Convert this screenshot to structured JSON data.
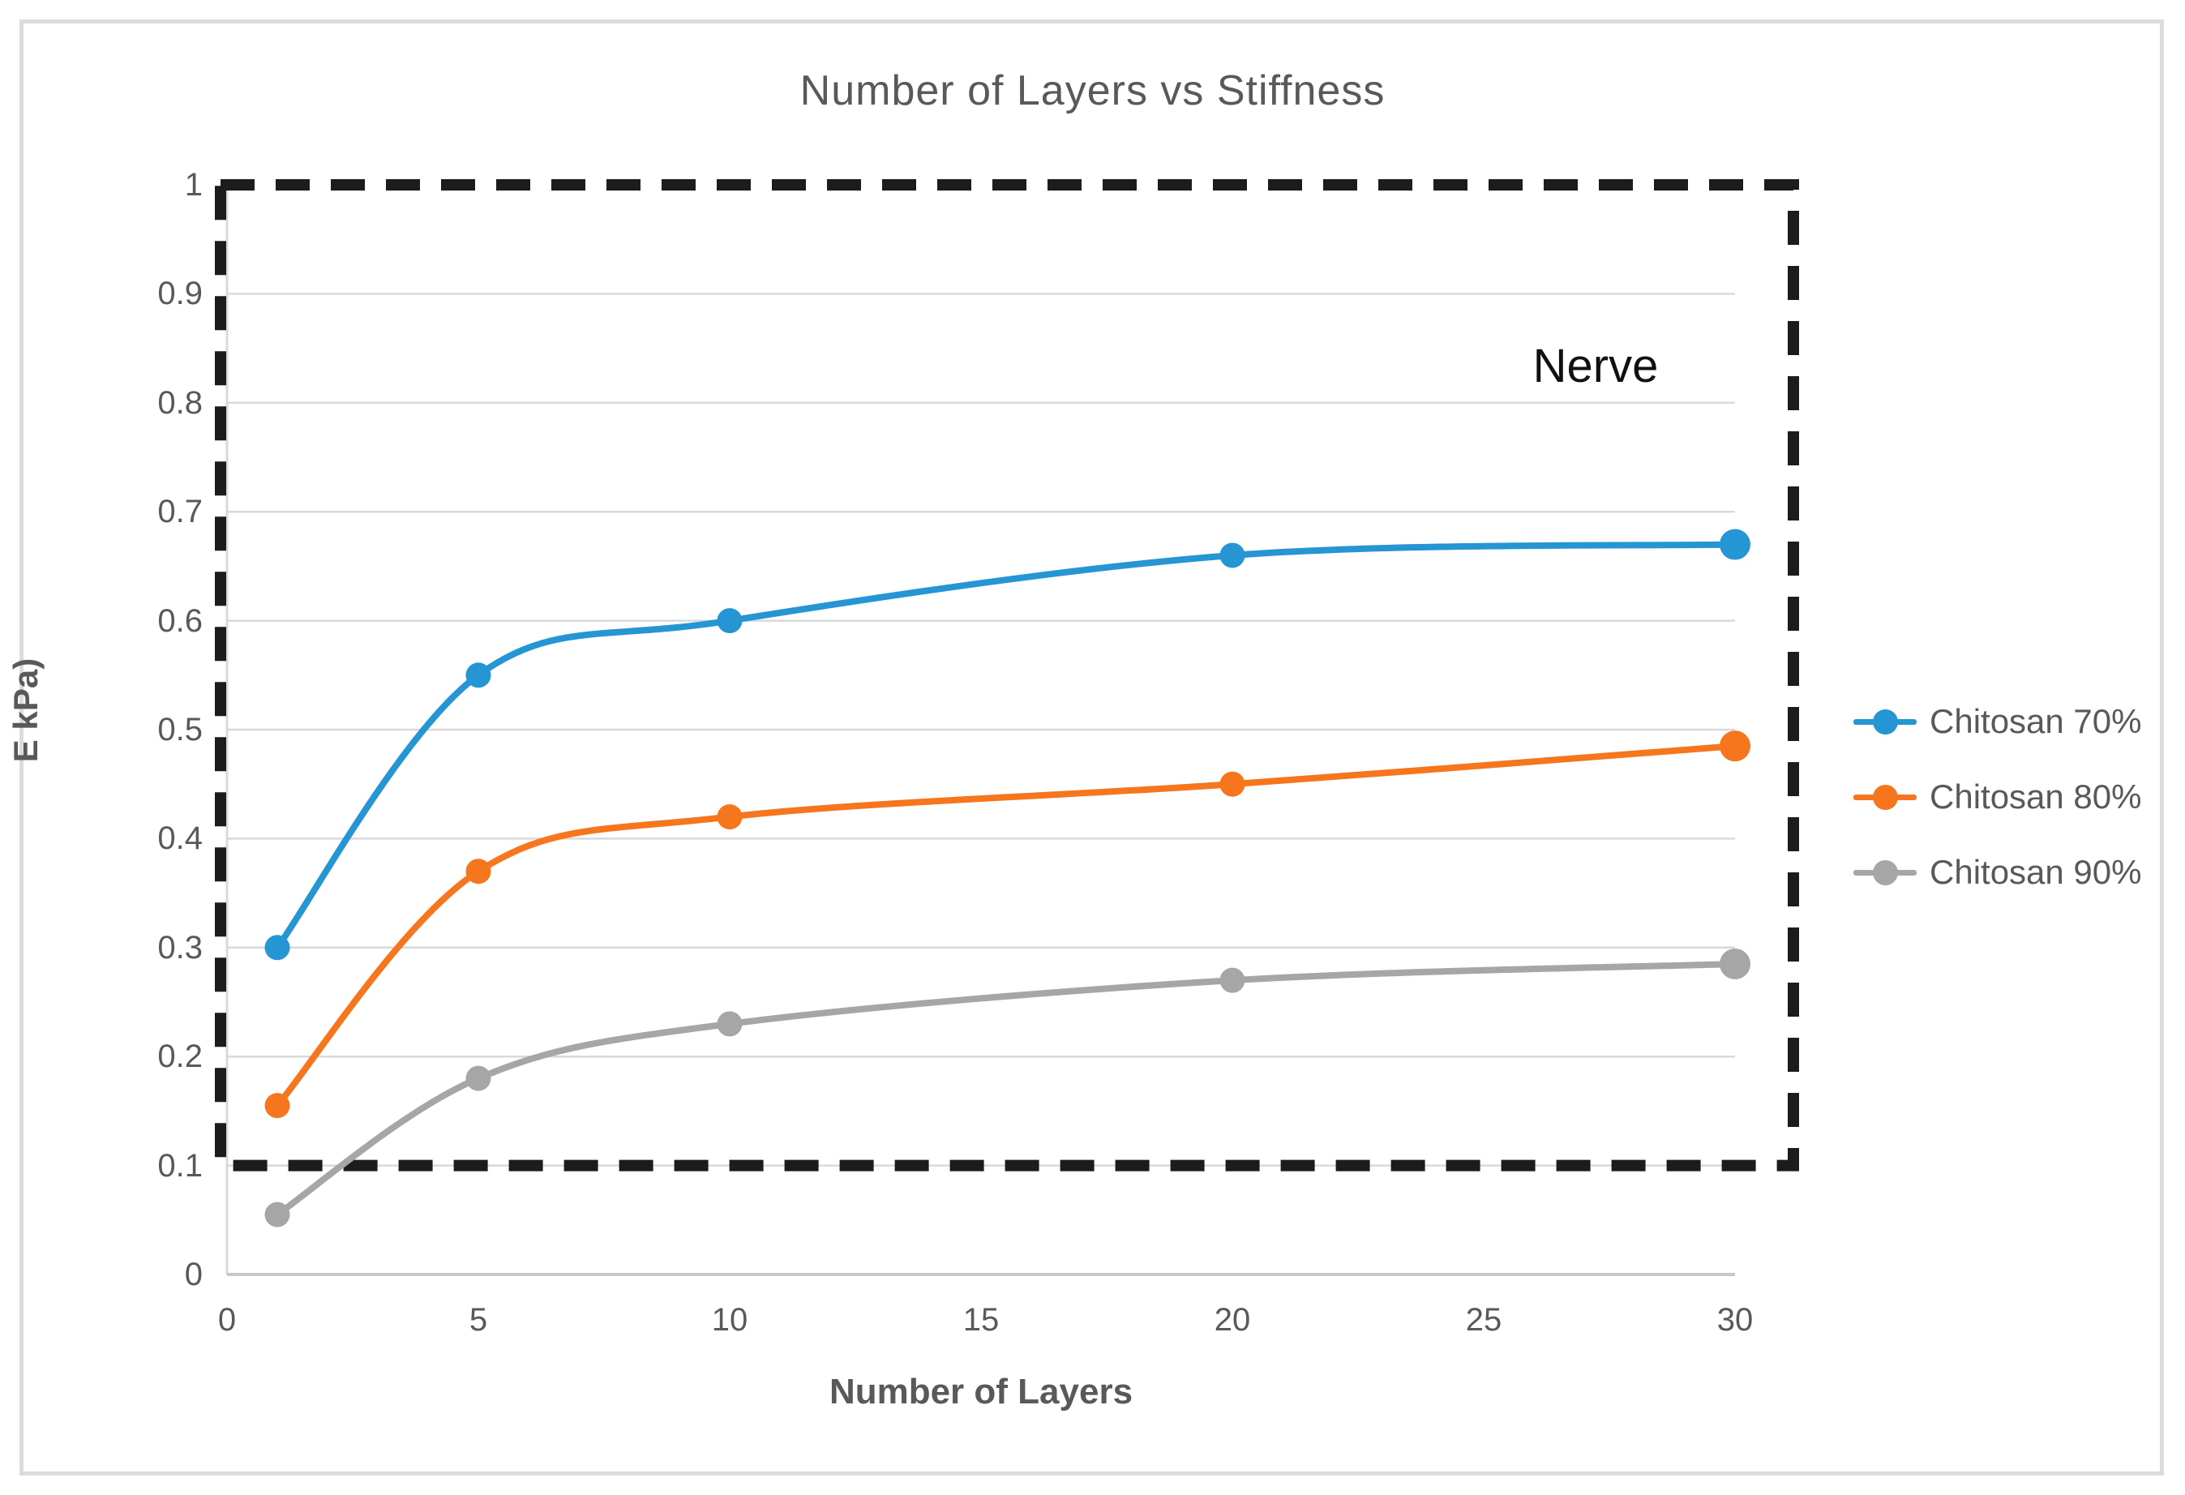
{
  "chart_data": {
    "type": "line",
    "title": "Number of Layers vs Stiffness",
    "xlabel": "Number of Layers",
    "ylabel": "E kPa)",
    "x": [
      1,
      5,
      10,
      20,
      30
    ],
    "series": [
      {
        "name": "Chitosan 70%",
        "color": "#2596D3",
        "values": [
          0.3,
          0.55,
          0.6,
          0.66,
          0.67
        ]
      },
      {
        "name": "Chitosan 80%",
        "color": "#F5761D",
        "values": [
          0.155,
          0.37,
          0.42,
          0.45,
          0.485
        ]
      },
      {
        "name": "Chitosan 90%",
        "color": "#A6A6A6",
        "values": [
          0.055,
          0.18,
          0.23,
          0.27,
          0.285
        ]
      }
    ],
    "x_tick_labels": [
      "0",
      "5",
      "10",
      "15",
      "20",
      "25",
      "30"
    ],
    "x_tick_values": [
      0,
      5,
      10,
      15,
      20,
      25,
      30
    ],
    "y_tick_labels": [
      "0",
      "0.1",
      "0.2",
      "0.3",
      "0.4",
      "0.5",
      "0.6",
      "0.7",
      "0.8",
      "0.9",
      "1"
    ],
    "y_tick_values": [
      0,
      0.1,
      0.2,
      0.3,
      0.4,
      0.5,
      0.6,
      0.7,
      0.8,
      0.9,
      1
    ],
    "xlim": [
      0,
      31
    ],
    "ylim": [
      0,
      1
    ],
    "grid": "horizontal",
    "legend_position": "right",
    "annotation": {
      "label": "Nerve",
      "box": {
        "x0": 0,
        "x1": 31,
        "y0": 0.1,
        "y1": 1.0
      },
      "box_style": "black-dashed"
    }
  },
  "colors": {
    "text": "#595959",
    "gridline": "#D9D9D9",
    "axis_line": "#C8C8C8",
    "frame_border": "#DCDCDC",
    "annotation_box": "#1C1C1C",
    "annotation_text": "#111111",
    "background": "#FFFFFF"
  }
}
